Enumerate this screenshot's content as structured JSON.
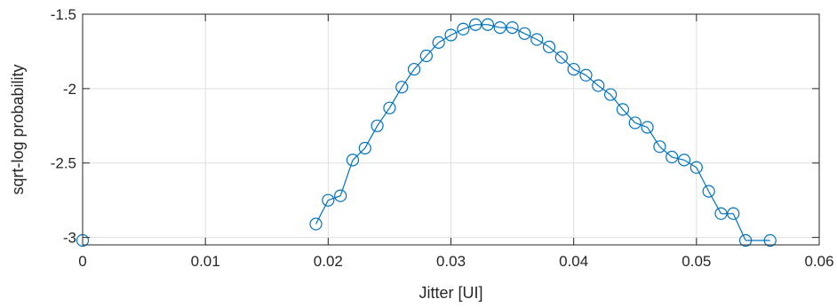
{
  "chart_data": {
    "type": "line",
    "title": "",
    "xlabel": "Jitter [UI]",
    "ylabel": "sqrt-log probability",
    "xlim": [
      0,
      0.06
    ],
    "ylim": [
      -3.05,
      -1.5
    ],
    "xticks": [
      0,
      0.01,
      0.02,
      0.03,
      0.04,
      0.05,
      0.06
    ],
    "xtick_labels": [
      "0",
      "0.01",
      "0.02",
      "0.03",
      "0.04",
      "0.05",
      "0.06"
    ],
    "yticks": [
      -3,
      -2.5,
      -2,
      -1.5
    ],
    "ytick_labels": [
      "-3",
      "-2.5",
      "-2",
      "-1.5"
    ],
    "grid": true,
    "colors": {
      "series": "#0072bd",
      "grid": "#dfdfdf",
      "axis": "#262626"
    },
    "series": [
      {
        "marker": "circle-open",
        "points": [
          [
            0,
            -3.02
          ],
          [
            0.019,
            -2.91
          ],
          [
            0.02,
            -2.75
          ],
          [
            0.021,
            -2.72
          ],
          [
            0.022,
            -2.48
          ],
          [
            0.023,
            -2.4
          ],
          [
            0.024,
            -2.25
          ],
          [
            0.025,
            -2.13
          ],
          [
            0.026,
            -1.99
          ],
          [
            0.027,
            -1.87
          ],
          [
            0.028,
            -1.78
          ],
          [
            0.029,
            -1.69
          ],
          [
            0.03,
            -1.64
          ],
          [
            0.031,
            -1.6
          ],
          [
            0.032,
            -1.57
          ],
          [
            0.033,
            -1.57
          ],
          [
            0.034,
            -1.59
          ],
          [
            0.035,
            -1.59
          ],
          [
            0.036,
            -1.63
          ],
          [
            0.037,
            -1.67
          ],
          [
            0.038,
            -1.72
          ],
          [
            0.039,
            -1.79
          ],
          [
            0.04,
            -1.87
          ],
          [
            0.041,
            -1.91
          ],
          [
            0.042,
            -1.98
          ],
          [
            0.043,
            -2.04
          ],
          [
            0.044,
            -2.14
          ],
          [
            0.045,
            -2.23
          ],
          [
            0.046,
            -2.26
          ],
          [
            0.047,
            -2.39
          ],
          [
            0.048,
            -2.46
          ],
          [
            0.049,
            -2.48
          ],
          [
            0.05,
            -2.53
          ],
          [
            0.051,
            -2.69
          ],
          [
            0.052,
            -2.84
          ],
          [
            0.053,
            -2.84
          ],
          [
            0.054,
            -3.02
          ],
          [
            0.056,
            -3.02
          ]
        ]
      }
    ]
  }
}
